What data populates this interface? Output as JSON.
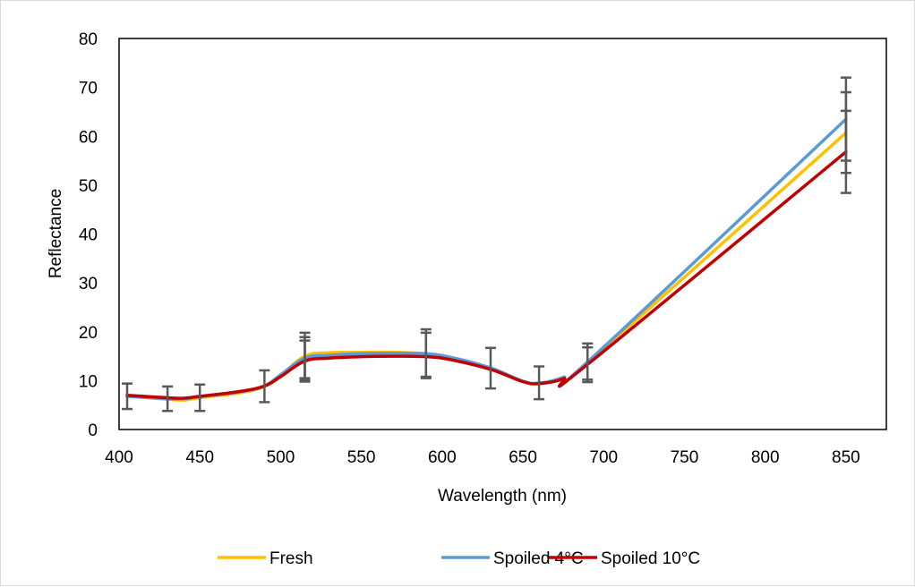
{
  "chart_data": {
    "type": "line",
    "title": "",
    "xlabel": "Wavelength (nm)",
    "ylabel": "Reflectance",
    "xlim": [
      400,
      875
    ],
    "ylim": [
      0,
      80
    ],
    "x_ticks": [
      "400",
      "450",
      "500",
      "550",
      "600",
      "650",
      "700",
      "750",
      "800",
      "850"
    ],
    "y_ticks": [
      "0",
      "10",
      "20",
      "30",
      "40",
      "50",
      "60",
      "70",
      "80"
    ],
    "grid": false,
    "legend_position": "bottom",
    "series": [
      {
        "name": "Fresh",
        "color": "#FFC000",
        "x": [
          405,
          430,
          440,
          450,
          475,
          490,
          500,
          515,
          530,
          550,
          570,
          590,
          605,
          630,
          650,
          660,
          675,
          690,
          850
        ],
        "y": [
          6.8,
          6.2,
          6.0,
          6.5,
          7.5,
          8.8,
          11.0,
          15.0,
          15.7,
          15.8,
          15.8,
          15.5,
          14.7,
          12.6,
          9.8,
          9.4,
          10.5,
          13.6,
          60.7
        ]
      },
      {
        "name": "Spoiled 4°C",
        "color": "#5B9BD5",
        "x": [
          405,
          430,
          440,
          450,
          475,
          490,
          500,
          515,
          530,
          550,
          570,
          590,
          605,
          630,
          650,
          660,
          675,
          690,
          850
        ],
        "y": [
          6.8,
          6.3,
          6.3,
          6.7,
          7.7,
          8.9,
          11.2,
          14.6,
          15.2,
          15.5,
          15.6,
          15.5,
          14.8,
          12.6,
          9.9,
          9.5,
          10.7,
          13.8,
          63.5
        ]
      },
      {
        "name": "Spoiled 10°C",
        "color": "#C00000",
        "x": [
          405,
          430,
          440,
          450,
          475,
          490,
          500,
          515,
          530,
          550,
          570,
          590,
          605,
          630,
          650,
          660,
          675,
          690,
          850
        ],
        "y": [
          7.0,
          6.5,
          6.4,
          6.8,
          7.8,
          8.9,
          10.8,
          14.0,
          14.6,
          14.9,
          15.0,
          14.9,
          14.3,
          12.3,
          9.8,
          9.4,
          10.4,
          13.3,
          56.8
        ]
      }
    ],
    "error_bars": [
      {
        "x": 405,
        "low": 4.2,
        "high": 9.4
      },
      {
        "x": 430,
        "low": 3.8,
        "high": 8.8
      },
      {
        "x": 450,
        "low": 3.8,
        "high": 9.2
      },
      {
        "x": 490,
        "low": 5.6,
        "high": 12.1
      },
      {
        "x": 515,
        "low": 9.8,
        "high": 19.8
      },
      {
        "x": 515,
        "low": 10.2,
        "high": 18.9
      },
      {
        "x": 515,
        "low": 10.5,
        "high": 18.2
      },
      {
        "x": 590,
        "low": 10.5,
        "high": 20.5
      },
      {
        "x": 590,
        "low": 10.8,
        "high": 19.8
      },
      {
        "x": 630,
        "low": 8.4,
        "high": 16.7
      },
      {
        "x": 660,
        "low": 6.2,
        "high": 12.9
      },
      {
        "x": 690,
        "low": 9.7,
        "high": 17.6
      },
      {
        "x": 690,
        "low": 10.2,
        "high": 16.8
      },
      {
        "x": 850,
        "low": 55.0,
        "high": 72.0
      },
      {
        "x": 850,
        "low": 52.5,
        "high": 69.0
      },
      {
        "x": 850,
        "low": 48.4,
        "high": 65.2
      }
    ],
    "error_bar_color": "#595959"
  }
}
